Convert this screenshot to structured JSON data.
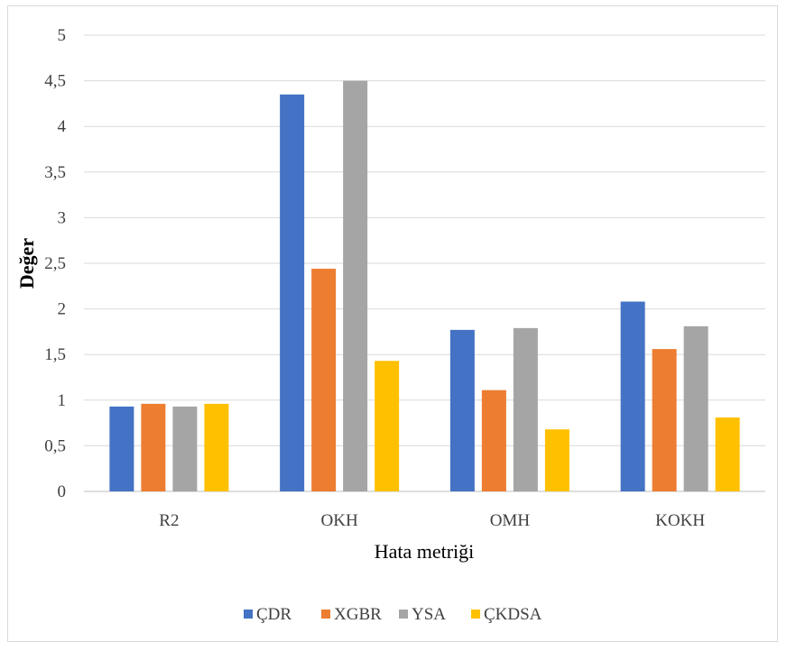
{
  "chart_data": {
    "type": "bar",
    "categories": [
      "R2",
      "OKH",
      "OMH",
      "KOKH"
    ],
    "series": [
      {
        "name": "ÇDR",
        "color": "#4472C4",
        "values": [
          0.93,
          4.35,
          1.77,
          2.08
        ]
      },
      {
        "name": "XGBR",
        "color": "#ED7D31",
        "values": [
          0.96,
          2.44,
          1.11,
          1.56
        ]
      },
      {
        "name": "YSA",
        "color": "#A5A5A5",
        "values": [
          0.93,
          4.5,
          1.79,
          1.81
        ]
      },
      {
        "name": "ÇKDSA",
        "color": "#FFC000",
        "values": [
          0.96,
          1.43,
          0.68,
          0.81
        ]
      }
    ],
    "ylim": [
      0,
      5
    ],
    "yticks": [
      "0",
      "0,5",
      "1",
      "1,5",
      "2",
      "2,5",
      "3",
      "3,5",
      "4",
      "4,5",
      "5"
    ],
    "ytick_values": [
      0,
      0.5,
      1,
      1.5,
      2,
      2.5,
      3,
      3.5,
      4,
      4.5,
      5
    ],
    "xlabel": "Hata metriği",
    "ylabel": "Değer",
    "grid": true,
    "legend": "bottom"
  }
}
